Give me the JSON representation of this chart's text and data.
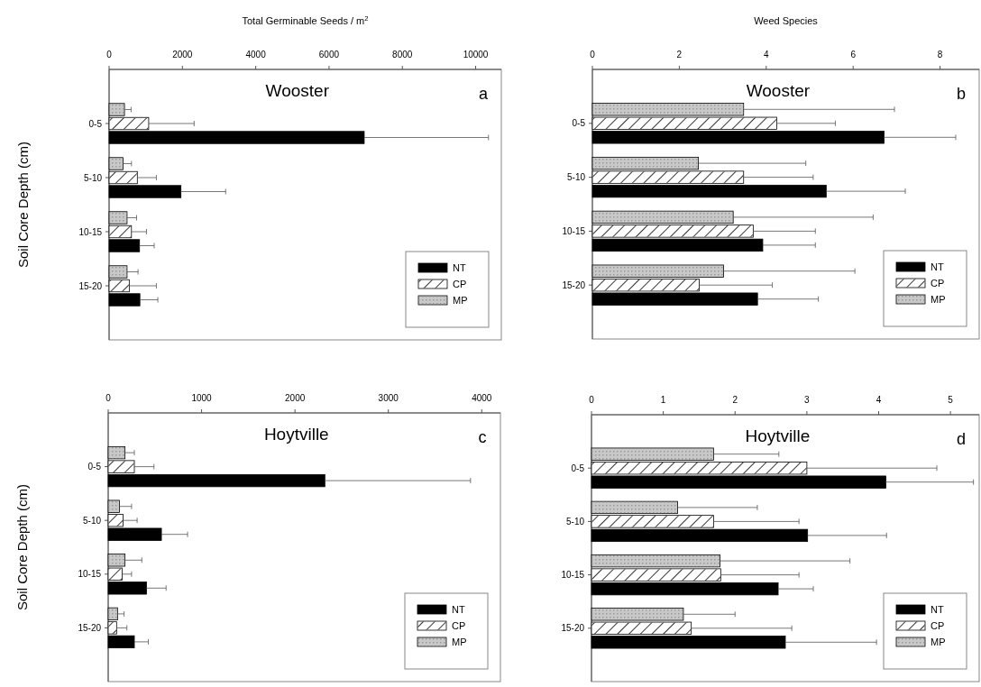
{
  "chart_data": [
    {
      "type": "bar",
      "orientation": "horizontal",
      "title": "Wooster",
      "xlabel": "Total Germinable Seeds / m$^{2}$",
      "ylabel": "Soil Core Depth (cm)",
      "annotations": [
        "a"
      ],
      "categories": [
        "0-5",
        "5-10",
        "10-15",
        "15-20"
      ],
      "xlim": [
        0,
        10700
      ],
      "xticks": [
        0,
        2000,
        4000,
        6000,
        8000,
        10000
      ],
      "legend": "bottom right",
      "grid": false,
      "series": [
        {
          "name": "MP",
          "color": "#c8c8c8",
          "values": [
            420,
            380,
            490,
            490
          ],
          "errors": [
            [
              420,
              600
            ],
            [
              380,
              610
            ],
            [
              490,
              750
            ],
            [
              490,
              790
            ]
          ]
        },
        {
          "name": "CP",
          "color": "#ffffff",
          "values": [
            1080,
            770,
            610,
            550
          ],
          "errors": [
            [
              1080,
              2320
            ],
            [
              770,
              1290
            ],
            [
              610,
              1020
            ],
            [
              550,
              1290
            ]
          ]
        },
        {
          "name": "NT",
          "color": "#000000",
          "values": [
            6960,
            1960,
            830,
            840
          ],
          "errors": [
            [
              6960,
              10350
            ],
            [
              1960,
              3180
            ],
            [
              830,
              1230
            ],
            [
              840,
              1330
            ]
          ]
        }
      ]
    },
    {
      "type": "bar",
      "orientation": "horizontal",
      "title": "Wooster",
      "xlabel": "Weed Species",
      "annotations": [
        "b"
      ],
      "categories": [
        "0-5",
        "5-10",
        "10-15",
        "15-20"
      ],
      "xlim": [
        0,
        8.9
      ],
      "xticks": [
        0,
        2,
        4,
        6,
        8
      ],
      "legend": "bottom right",
      "grid": false,
      "series": [
        {
          "name": "MP",
          "color": "#c8c8c8",
          "values": [
            3.48,
            2.44,
            3.24,
            3.02
          ],
          "errors": [
            [
              3.48,
              6.95
            ],
            [
              2.44,
              4.91
            ],
            [
              3.24,
              6.46
            ],
            [
              3.02,
              6.04
            ]
          ]
        },
        {
          "name": "CP",
          "color": "#ffffff",
          "values": [
            4.24,
            3.48,
            3.7,
            2.46
          ],
          "errors": [
            [
              4.24,
              5.59
            ],
            [
              3.48,
              5.08
            ],
            [
              3.7,
              5.13
            ],
            [
              2.46,
              4.14
            ]
          ]
        },
        {
          "name": "NT",
          "color": "#000000",
          "values": [
            6.71,
            5.38,
            3.92,
            3.8
          ],
          "errors": [
            [
              6.71,
              8.36
            ],
            [
              5.38,
              7.2
            ],
            [
              3.92,
              5.13
            ],
            [
              3.8,
              5.2
            ]
          ]
        }
      ]
    },
    {
      "type": "bar",
      "orientation": "horizontal",
      "title": "Hoytville",
      "ylabel": "Soil Core Depth (cm)",
      "annotations": [
        "c"
      ],
      "categories": [
        "0-5",
        "5-10",
        "10-15",
        "15-20"
      ],
      "xlim": [
        0,
        4200
      ],
      "xticks": [
        0,
        1000,
        2000,
        3000,
        4000
      ],
      "legend": "bottom right",
      "grid": false,
      "series": [
        {
          "name": "MP",
          "color": "#c8c8c8",
          "values": [
            180,
            120,
            180,
            100
          ],
          "errors": [
            [
              180,
              280
            ],
            [
              120,
              250
            ],
            [
              180,
              360
            ],
            [
              100,
              170
            ]
          ]
        },
        {
          "name": "CP",
          "color": "#ffffff",
          "values": [
            280,
            160,
            150,
            90
          ],
          "errors": [
            [
              280,
              490
            ],
            [
              160,
              310
            ],
            [
              150,
              250
            ],
            [
              90,
              200
            ]
          ]
        },
        {
          "name": "NT",
          "color": "#000000",
          "values": [
            2320,
            570,
            410,
            280
          ],
          "errors": [
            [
              2320,
              3880
            ],
            [
              570,
              850
            ],
            [
              410,
              620
            ],
            [
              280,
              430
            ]
          ]
        }
      ]
    },
    {
      "type": "bar",
      "orientation": "horizontal",
      "title": "Hoytville",
      "annotations": [
        "d"
      ],
      "categories": [
        "0-5",
        "5-10",
        "10-15",
        "15-20"
      ],
      "xlim": [
        0,
        5.4
      ],
      "xticks": [
        0,
        1,
        2,
        3,
        4,
        5
      ],
      "legend": "bottom right",
      "grid": false,
      "series": [
        {
          "name": "MP",
          "color": "#c8c8c8",
          "values": [
            1.7,
            1.2,
            1.79,
            1.28
          ],
          "errors": [
            [
              1.7,
              2.61
            ],
            [
              1.2,
              2.31
            ],
            [
              1.79,
              3.6
            ],
            [
              1.28,
              2.0
            ]
          ]
        },
        {
          "name": "CP",
          "color": "#ffffff",
          "values": [
            3.0,
            1.7,
            1.8,
            1.39
          ],
          "errors": [
            [
              3.0,
              4.81
            ],
            [
              1.7,
              2.89
            ],
            [
              1.8,
              2.89
            ],
            [
              1.39,
              2.79
            ]
          ]
        },
        {
          "name": "NT",
          "color": "#000000",
          "values": [
            4.1,
            3.01,
            2.6,
            2.7
          ],
          "errors": [
            [
              4.1,
              5.32
            ],
            [
              3.01,
              4.11
            ],
            [
              2.6,
              3.09
            ],
            [
              2.7,
              3.97
            ]
          ]
        }
      ]
    }
  ]
}
